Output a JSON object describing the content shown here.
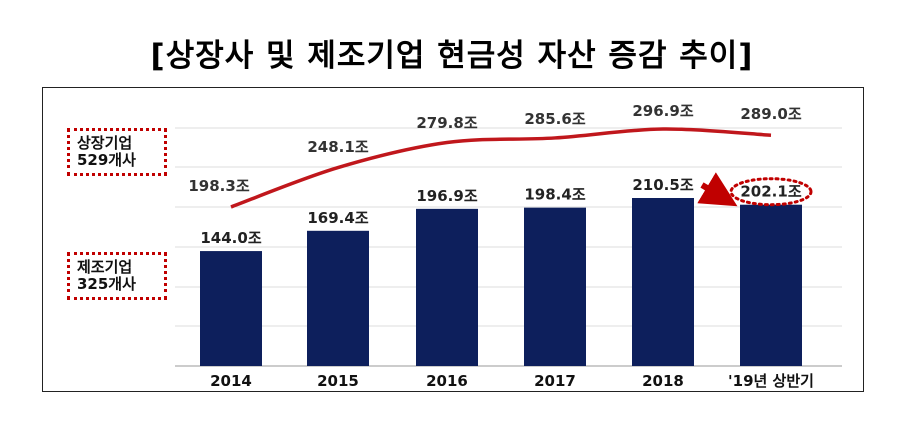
{
  "title": "[상장사 및 제조기업 현금성 자산 증감 추이]",
  "legend": {
    "listed_label": "상장기업\n529개사",
    "manufacturing_label": "제조기업\n325개사"
  },
  "colors": {
    "bar": "#0d1f5c",
    "line": "#c0171c",
    "highlight": "#c00000",
    "grid": "#dddddd"
  },
  "chart_data": {
    "type": "bar",
    "title": "[상장사 및 제조기업 현금성 자산 증감 추이]",
    "categories": [
      "2014",
      "2015",
      "2016",
      "2017",
      "2018",
      "'19년 상반기"
    ],
    "series": [
      {
        "name": "상장기업 529개사",
        "type": "line",
        "values": [
          198.3,
          248.1,
          279.8,
          285.6,
          296.9,
          289.0
        ],
        "labels": [
          "198.3조",
          "248.1조",
          "279.8조",
          "285.6조",
          "296.9조",
          "289.0조"
        ]
      },
      {
        "name": "제조기업 325개사",
        "type": "bar",
        "values": [
          144.0,
          169.4,
          196.9,
          198.4,
          210.5,
          202.1
        ],
        "labels": [
          "144.0조",
          "169.4조",
          "196.9조",
          "198.4조",
          "210.5조",
          "202.1조"
        ]
      }
    ],
    "highlight_category": "'19년 상반기",
    "grid": true
  }
}
